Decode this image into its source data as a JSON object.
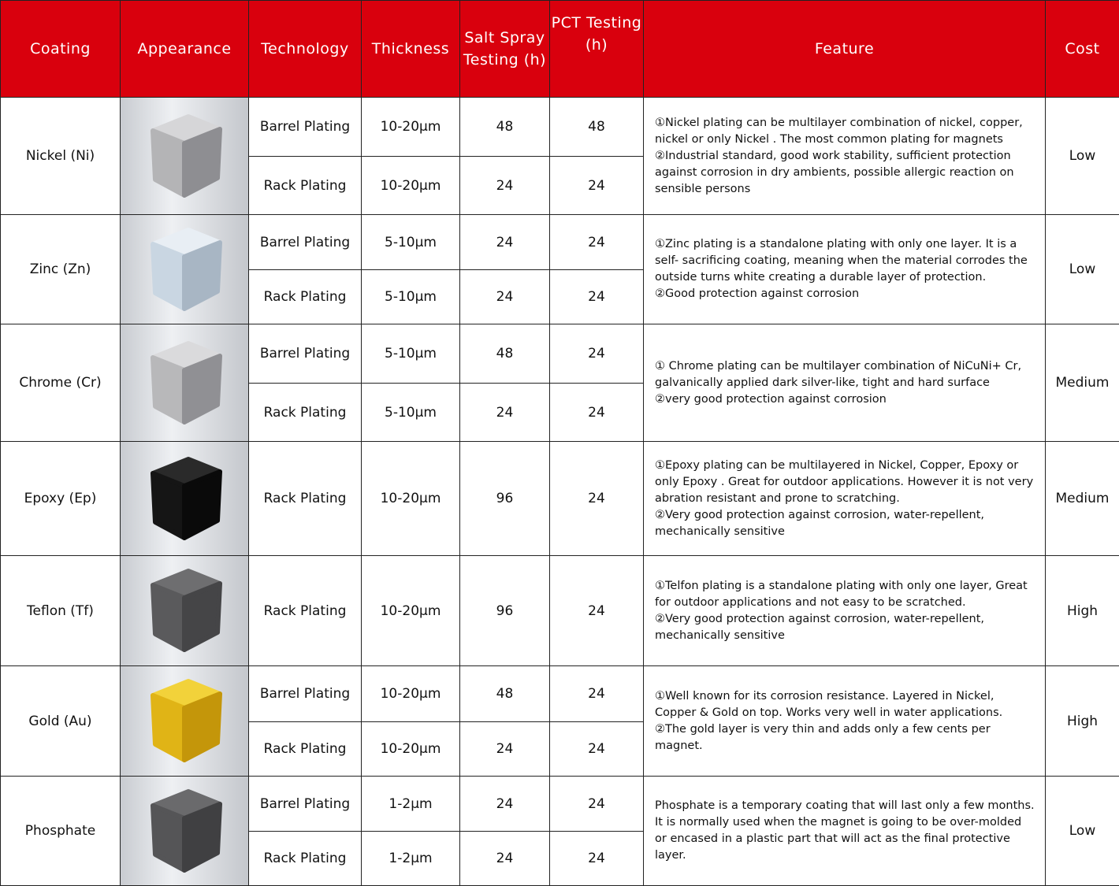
{
  "headers": [
    "Coating",
    "Appearance",
    "Technology",
    "Thickness",
    "Salt Spray Testing (h)",
    "PCT Testing (h)",
    "Feature",
    "Cost"
  ],
  "coatings": [
    {
      "name": "Nickel (Ni)",
      "cost": "Low",
      "colors": {
        "top": "#d6d6d8",
        "left": "#b4b4b6",
        "right": "#8e8e92"
      },
      "feature": [
        "①Nickel plating can be multilayer combination of nickel, copper, nickel or only Nickel . The most common plating for magnets",
        "②Industrial standard, good work stability, sufficient protection against corrosion in dry ambients, possible allergic reaction on sensible persons"
      ],
      "rows": [
        {
          "technology": "Barrel Plating",
          "thickness": "10-20μm",
          "salt": "48",
          "pct": "48"
        },
        {
          "technology": "Rack Plating",
          "thickness": "10-20μm",
          "salt": "24",
          "pct": "24"
        }
      ]
    },
    {
      "name": "Zinc (Zn)",
      "cost": "Low",
      "colors": {
        "top": "#e8eef4",
        "left": "#c9d6e2",
        "right": "#a8b6c4"
      },
      "feature": [
        "①Zinc plating is a standalone plating with only one layer. It is a self- sacrificing coating, meaning when the material corrodes the outside turns white creating a durable layer of protection.",
        "②Good protection against corrosion"
      ],
      "rows": [
        {
          "technology": "Barrel Plating",
          "thickness": "5-10μm",
          "salt": "24",
          "pct": "24"
        },
        {
          "technology": "Rack Plating",
          "thickness": "5-10μm",
          "salt": "24",
          "pct": "24"
        }
      ]
    },
    {
      "name": "Chrome (Cr)",
      "cost": "Medium",
      "colors": {
        "top": "#dadadc",
        "left": "#b8b8ba",
        "right": "#909094"
      },
      "feature": [
        "① Chrome plating can be multilayer combination of NiCuNi+ Cr, galvanically applied dark silver-like, tight and hard surface",
        "②very good protection against corrosion"
      ],
      "rows": [
        {
          "technology": "Barrel Plating",
          "thickness": "5-10μm",
          "salt": "48",
          "pct": "24"
        },
        {
          "technology": "Rack Plating",
          "thickness": "5-10μm",
          "salt": "24",
          "pct": "24"
        }
      ]
    },
    {
      "name": "Epoxy (Ep)",
      "cost": "Medium",
      "colors": {
        "top": "#2a2a2a",
        "left": "#151515",
        "right": "#0a0a0a"
      },
      "feature": [
        "①Epoxy plating can be multilayered in Nickel, Copper, Epoxy or only Epoxy . Great for outdoor applications. However it is not very abration resistant and prone to scratching.",
        "②Very good protection against corrosion, water-repellent, mechanically sensitive"
      ],
      "rows": [
        {
          "technology": "Rack Plating",
          "thickness": "10-20μm",
          "salt": "96",
          "pct": "24"
        }
      ]
    },
    {
      "name": "Teflon (Tf)",
      "cost": "High",
      "colors": {
        "top": "#6e6e70",
        "left": "#5a5a5c",
        "right": "#454547"
      },
      "feature": [
        "①Telfon plating is a standalone plating with only one layer, Great for outdoor applications and not easy to be  scratched.",
        "②Very good protection against corrosion, water-repellent, mechanically sensitive"
      ],
      "rows": [
        {
          "technology": "Rack Plating",
          "thickness": "10-20μm",
          "salt": "96",
          "pct": "24"
        }
      ]
    },
    {
      "name": "Gold (Au)",
      "cost": "High",
      "colors": {
        "top": "#f2d23a",
        "left": "#e0b416",
        "right": "#c4960a"
      },
      "feature": [
        "①Well known for its corrosion resistance. Layered in Nickel, Copper & Gold on top. Works very well in water applications.",
        "②The gold layer is very thin and adds only a few cents per magnet."
      ],
      "rows": [
        {
          "technology": "Barrel Plating",
          "thickness": "10-20μm",
          "salt": "48",
          "pct": "24"
        },
        {
          "technology": "Rack Plating",
          "thickness": "10-20μm",
          "salt": "24",
          "pct": "24"
        }
      ]
    },
    {
      "name": "Phosphate",
      "cost": "Low",
      "colors": {
        "top": "#6a6a6c",
        "left": "#555557",
        "right": "#404042"
      },
      "feature": [
        "Phosphate is a temporary coating that will last only a few months. It is normally used when the magnet is going to be over-molded or encased in a plastic part that will act as the final protective layer."
      ],
      "rows": [
        {
          "technology": "Barrel Plating",
          "thickness": "1-2μm",
          "salt": "24",
          "pct": "24"
        },
        {
          "technology": "Rack Plating",
          "thickness": "1-2μm",
          "salt": "24",
          "pct": "24"
        }
      ]
    }
  ]
}
